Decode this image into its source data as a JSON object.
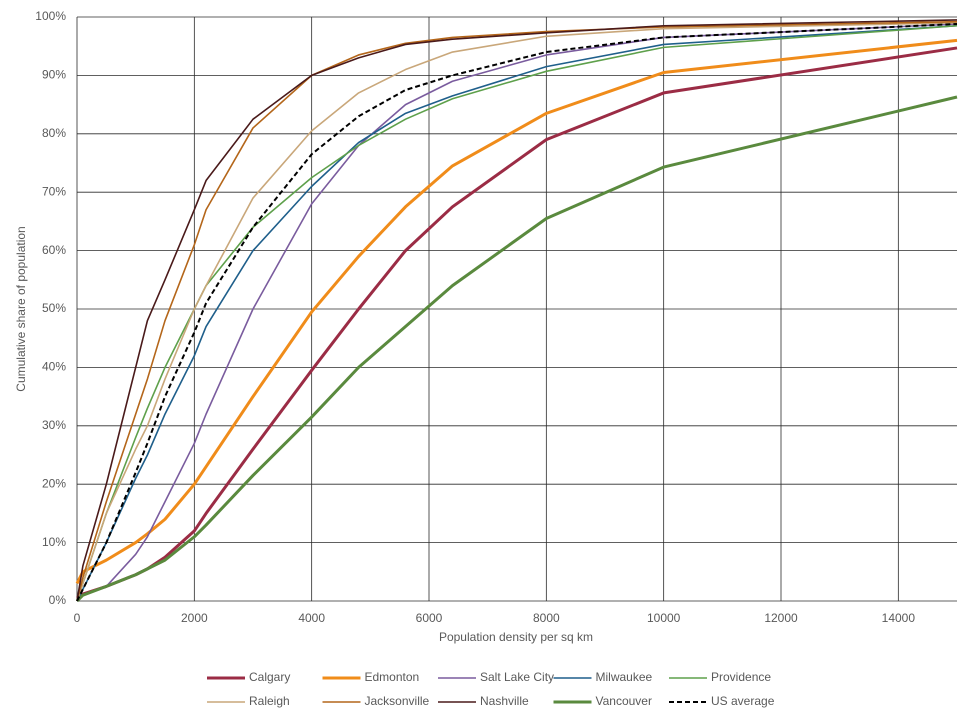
{
  "chart_data": {
    "type": "line",
    "x_label": "Population density per sq km",
    "y_label": "Cumulative share of population",
    "x": [
      0,
      100,
      500,
      1000,
      1200,
      1500,
      2000,
      2200,
      3000,
      4000,
      4800,
      5600,
      6400,
      8000,
      10000,
      15000
    ],
    "xlim": [
      0,
      15000
    ],
    "xticks": [
      0,
      2000,
      4000,
      6000,
      8000,
      10000,
      12000,
      14000
    ],
    "ylim": [
      0,
      100
    ],
    "yticks": [
      {
        "value": 0,
        "label": "0%"
      },
      {
        "value": 10,
        "label": "10%"
      },
      {
        "value": 20,
        "label": "20%"
      },
      {
        "value": 30,
        "label": "30%"
      },
      {
        "value": 40,
        "label": "40%"
      },
      {
        "value": 50,
        "label": "50%"
      },
      {
        "value": 60,
        "label": "60%"
      },
      {
        "value": 70,
        "label": "70%"
      },
      {
        "value": 80,
        "label": "80%"
      },
      {
        "value": 90,
        "label": "90%"
      },
      {
        "value": 100,
        "label": "100%"
      }
    ],
    "grid": true,
    "legend": "bottom",
    "series": [
      {
        "name": "Calgary",
        "color": "#9b2c45",
        "style": "thick",
        "values": [
          0.5,
          1.2,
          2.5,
          4.5,
          5.5,
          7.5,
          12,
          15,
          26,
          39.5,
          50,
          60,
          67.5,
          79,
          87,
          94.7
        ]
      },
      {
        "name": "Edmonton",
        "color": "#f08c1a",
        "style": "thick",
        "values": [
          3,
          5,
          7,
          10,
          11.5,
          14,
          20,
          23,
          35,
          49.5,
          59,
          67.5,
          74.5,
          83.5,
          90.5,
          96
        ]
      },
      {
        "name": "Salt Lake City",
        "color": "#7a5c9e",
        "style": "thin",
        "values": [
          0,
          1,
          2.5,
          8,
          11,
          17,
          27,
          32,
          50,
          68,
          78,
          85,
          89,
          93.5,
          96.5,
          98.8
        ]
      },
      {
        "name": "Milwaukee",
        "color": "#1f5f8b",
        "style": "thin",
        "values": [
          0,
          2,
          10,
          21,
          25,
          32,
          42,
          47,
          60,
          71,
          78.5,
          83.5,
          86.5,
          91.5,
          95.3,
          98.5
        ]
      },
      {
        "name": "Providence",
        "color": "#5ea04b",
        "style": "thin",
        "values": [
          0,
          3,
          15,
          28,
          33,
          40,
          50,
          54,
          64,
          72.5,
          78,
          82.5,
          86,
          90.7,
          94.8,
          98.5
        ]
      },
      {
        "name": "Raleigh",
        "color": "#c9a77a",
        "style": "thin",
        "values": [
          0,
          3,
          15,
          26,
          30,
          38,
          50,
          54,
          69,
          80.5,
          87,
          91,
          94,
          96.7,
          98,
          99
        ]
      },
      {
        "name": "Jacksonville",
        "color": "#b4661a",
        "style": "thin",
        "values": [
          0,
          4,
          17,
          32,
          38,
          48,
          61,
          67,
          81,
          90,
          93.5,
          95.5,
          96.5,
          97.5,
          98.3,
          99.2
        ]
      },
      {
        "name": "Nashville",
        "color": "#4a1a1a",
        "style": "thin",
        "values": [
          0,
          6,
          20,
          40,
          48,
          55,
          67,
          72,
          82.5,
          90,
          93,
          95.3,
          96.2,
          97.3,
          98.5,
          99.5
        ]
      },
      {
        "name": "Vancouver",
        "color": "#5a8a3e",
        "style": "thick",
        "values": [
          0,
          1,
          2.5,
          4.5,
          5.5,
          7,
          11,
          13,
          21.5,
          31.5,
          40,
          47,
          54,
          65.5,
          74.3,
          86.3
        ]
      },
      {
        "name": "US average",
        "color": "#000000",
        "style": "dashed",
        "values": [
          0,
          2,
          10,
          22,
          27,
          35,
          46,
          51,
          64,
          76.5,
          83,
          87.5,
          90,
          94,
          96.5,
          98.8
        ]
      }
    ]
  }
}
